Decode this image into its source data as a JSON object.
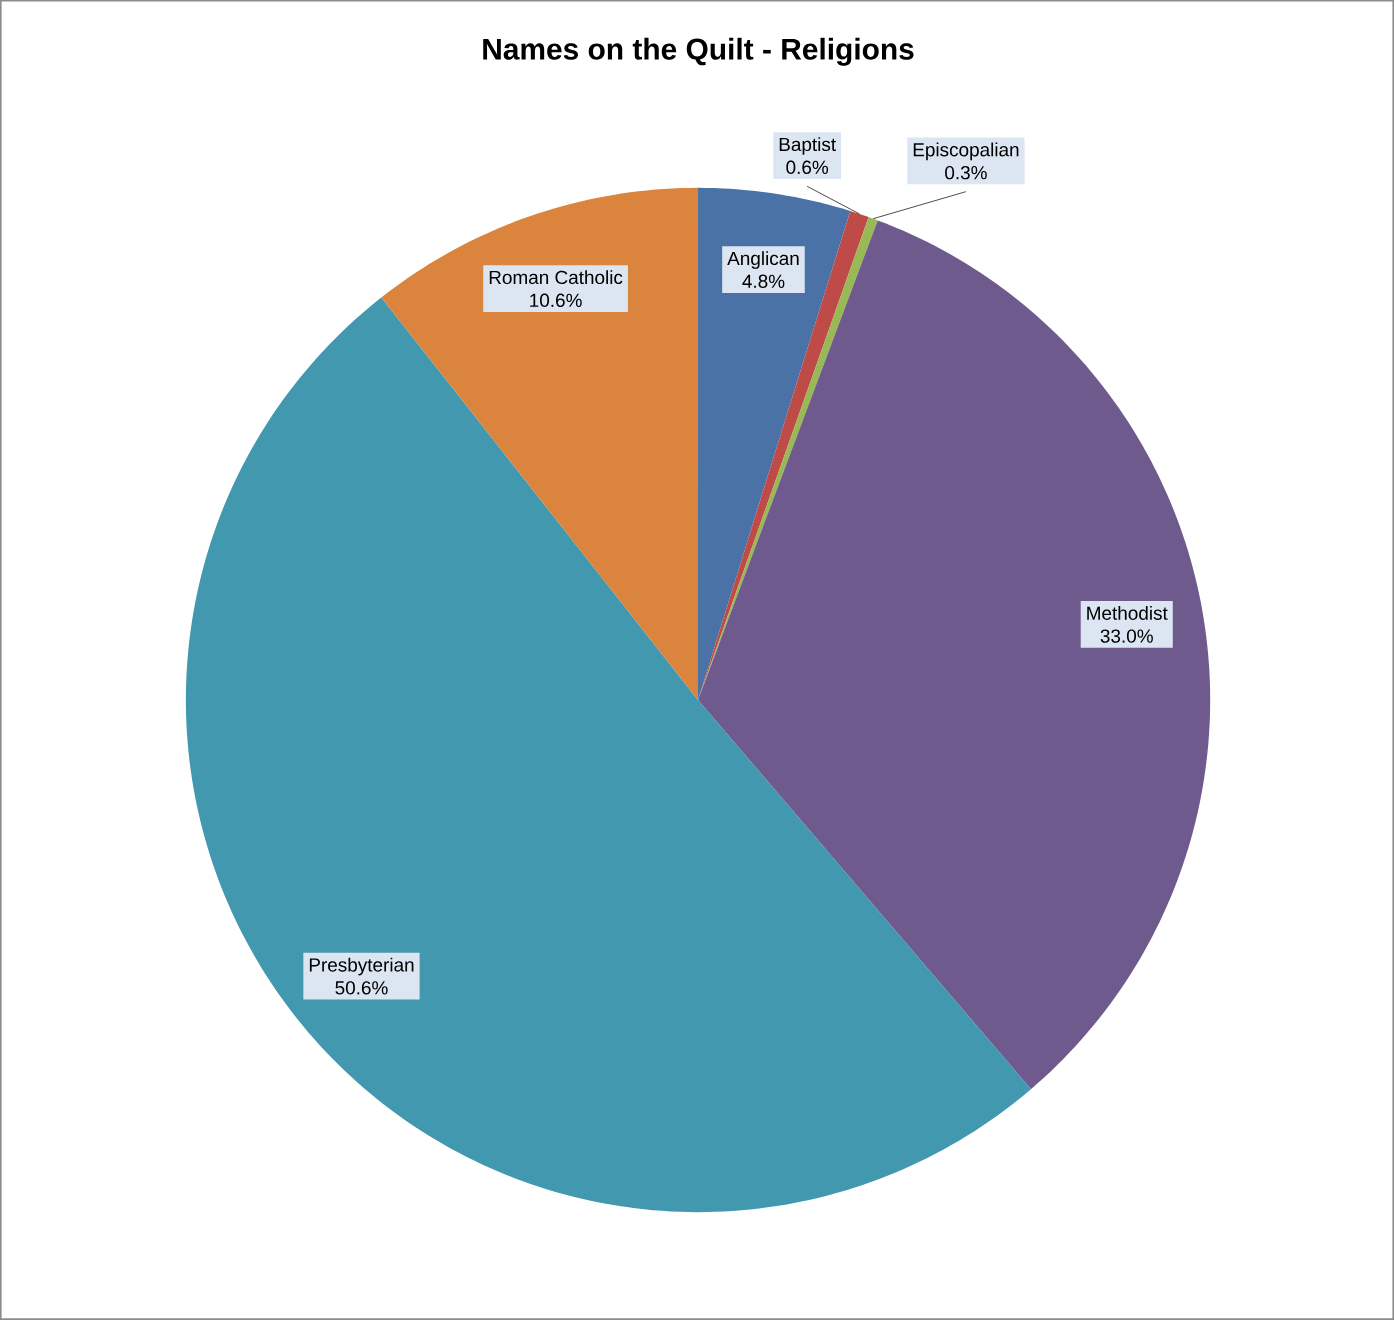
{
  "chart_data": {
    "type": "pie",
    "title": "Names on the Quilt - Religions",
    "categories": [
      "Anglican",
      "Baptist",
      "Episcopalian",
      "Methodist",
      "Presbyterian",
      "Roman Catholic"
    ],
    "values": [
      4.8,
      0.6,
      0.3,
      33.0,
      50.6,
      10.6
    ],
    "value_labels": [
      "4.8%",
      "0.6%",
      "0.3%",
      "33.0%",
      "50.6%",
      "10.6%"
    ],
    "colors": [
      "#4a72a6",
      "#be4b48",
      "#98b954",
      "#6f5a8e",
      "#4198af",
      "#db843d"
    ]
  }
}
